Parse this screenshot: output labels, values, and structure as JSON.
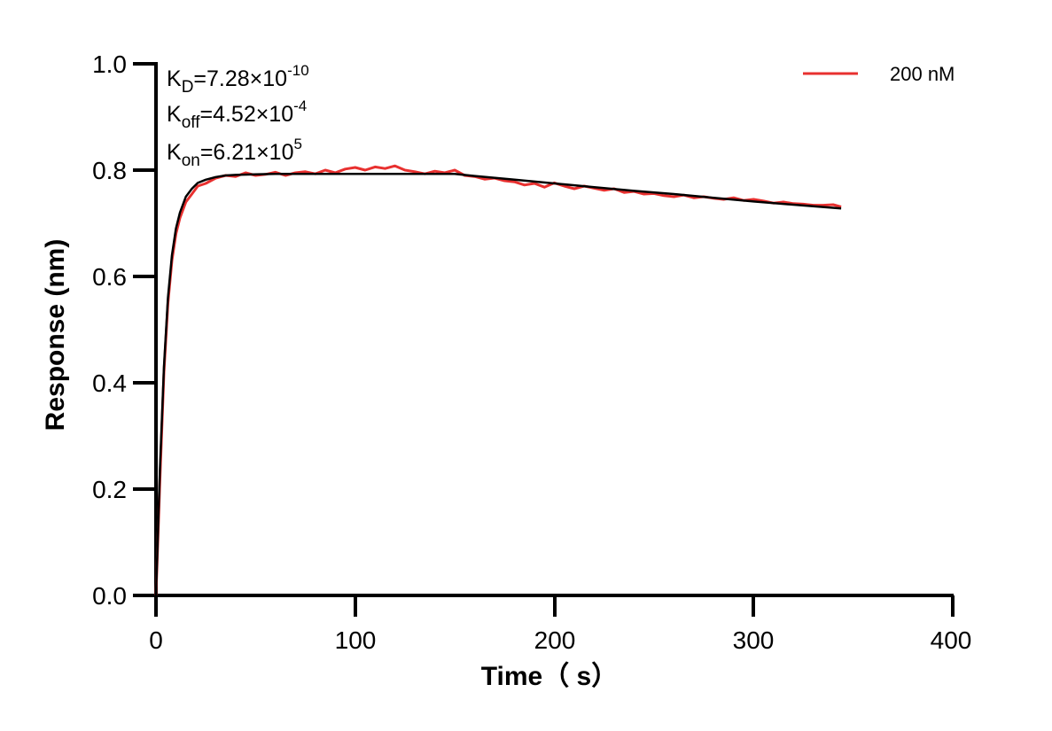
{
  "chart_data": {
    "type": "line",
    "xlabel": "Time（ s）",
    "ylabel": "Response (nm)",
    "xlim": [
      0,
      400
    ],
    "ylim": [
      0,
      1.0
    ],
    "xticks": [
      "0",
      "100",
      "200",
      "300",
      "400"
    ],
    "yticks": [
      "0.0",
      "0.2",
      "0.4",
      "0.6",
      "0.8",
      "1.0"
    ],
    "grid": false,
    "legend_position": "top-right",
    "annotations": [
      {
        "base": "K",
        "sub": "D",
        "value": "=7.28×10",
        "exp": "-10"
      },
      {
        "base": "K",
        "sub": "off",
        "value": "=4.52×10",
        "exp": "-4"
      },
      {
        "base": "K",
        "sub": "on",
        "value": "=6.21×10",
        "exp": "5"
      }
    ],
    "series": [
      {
        "name": "200 nM",
        "color": "#e8302f",
        "x": [
          0,
          2,
          4,
          6,
          8,
          10,
          12,
          15,
          18,
          21,
          25,
          30,
          35,
          40,
          45,
          50,
          55,
          60,
          65,
          70,
          75,
          80,
          85,
          90,
          95,
          100,
          105,
          110,
          115,
          120,
          125,
          130,
          135,
          140,
          145,
          150,
          155,
          160,
          165,
          170,
          175,
          180,
          185,
          190,
          195,
          200,
          205,
          210,
          215,
          220,
          225,
          230,
          235,
          240,
          245,
          250,
          255,
          260,
          265,
          270,
          275,
          280,
          285,
          290,
          295,
          300,
          305,
          310,
          315,
          320,
          325,
          330,
          335,
          340,
          344
        ],
        "values": [
          0.0,
          0.22,
          0.42,
          0.55,
          0.63,
          0.68,
          0.71,
          0.74,
          0.755,
          0.77,
          0.775,
          0.785,
          0.79,
          0.788,
          0.795,
          0.79,
          0.792,
          0.796,
          0.79,
          0.795,
          0.797,
          0.793,
          0.8,
          0.795,
          0.802,
          0.805,
          0.8,
          0.806,
          0.803,
          0.808,
          0.8,
          0.797,
          0.793,
          0.798,
          0.795,
          0.8,
          0.79,
          0.788,
          0.783,
          0.785,
          0.78,
          0.778,
          0.772,
          0.775,
          0.768,
          0.776,
          0.77,
          0.765,
          0.77,
          0.766,
          0.762,
          0.765,
          0.758,
          0.76,
          0.755,
          0.756,
          0.752,
          0.75,
          0.753,
          0.748,
          0.75,
          0.747,
          0.745,
          0.748,
          0.743,
          0.745,
          0.742,
          0.738,
          0.74,
          0.737,
          0.736,
          0.734,
          0.734,
          0.735,
          0.731
        ]
      }
    ],
    "fit_line": {
      "color": "#000000",
      "x": [
        0,
        2,
        4,
        6,
        8,
        10,
        12,
        15,
        18,
        21,
        25,
        30,
        35,
        40,
        50,
        60,
        80,
        100,
        120,
        140,
        150,
        160,
        180,
        200,
        220,
        240,
        260,
        280,
        300,
        320,
        344
      ],
      "values": [
        0.0,
        0.24,
        0.43,
        0.56,
        0.64,
        0.69,
        0.72,
        0.75,
        0.765,
        0.776,
        0.782,
        0.787,
        0.79,
        0.791,
        0.792,
        0.793,
        0.793,
        0.793,
        0.793,
        0.793,
        0.793,
        0.789,
        0.782,
        0.775,
        0.768,
        0.761,
        0.755,
        0.748,
        0.741,
        0.735,
        0.728
      ]
    }
  }
}
